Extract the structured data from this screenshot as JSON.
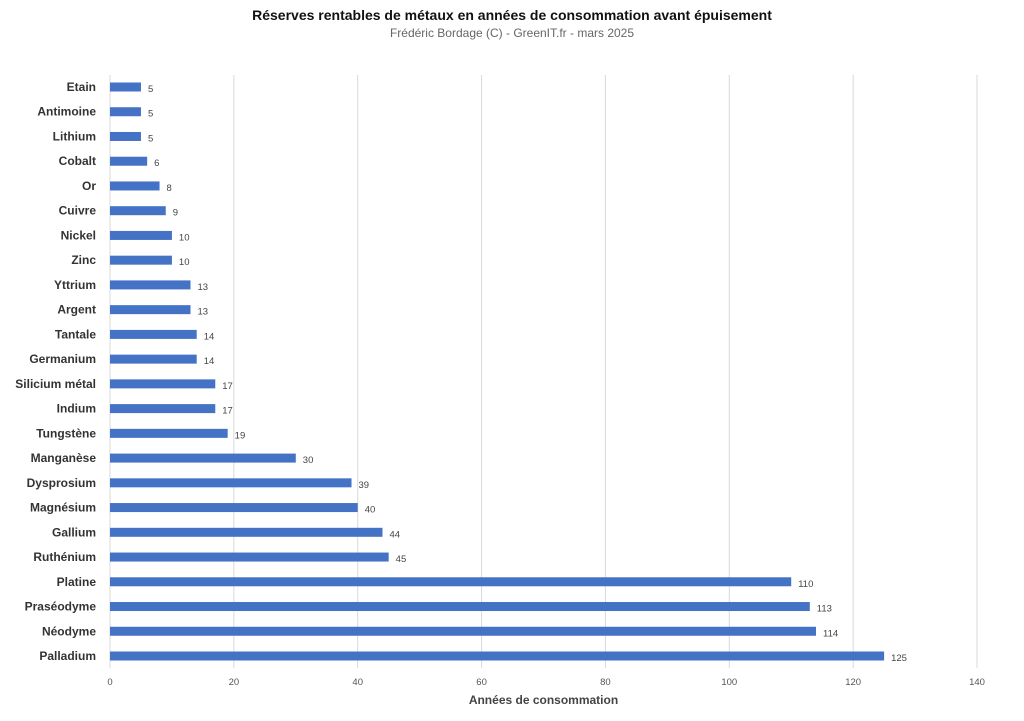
{
  "chart_data": {
    "type": "bar",
    "orientation": "horizontal",
    "title": "Réserves rentables de métaux en années de consommation avant épuisement",
    "subtitle": "Frédéric Bordage (C) - GreenIT.fr - mars 2025",
    "xlabel": "Années de consommation",
    "ylabel": "",
    "xlim": [
      0,
      140
    ],
    "xticks": [
      0,
      20,
      40,
      60,
      80,
      100,
      120,
      140
    ],
    "grid": true,
    "bar_color": "#4472C4",
    "categories": [
      "Etain",
      "Antimoine",
      "Lithium",
      "Cobalt",
      "Or",
      "Cuivre",
      "Nickel",
      "Zinc",
      "Yttrium",
      "Argent",
      "Tantale",
      "Germanium",
      "Silicium  métal",
      "Indium",
      "Tungstène",
      "Manganèse",
      "Dysprosium",
      "Magnésium",
      "Gallium",
      "Ruthénium",
      "Platine",
      "Praséodyme",
      "Néodyme",
      "Palladium"
    ],
    "values": [
      5,
      5,
      5,
      6,
      8,
      9,
      10,
      10,
      13,
      13,
      14,
      14,
      17,
      17,
      19,
      30,
      39,
      40,
      44,
      45,
      110,
      113,
      114,
      125
    ]
  }
}
